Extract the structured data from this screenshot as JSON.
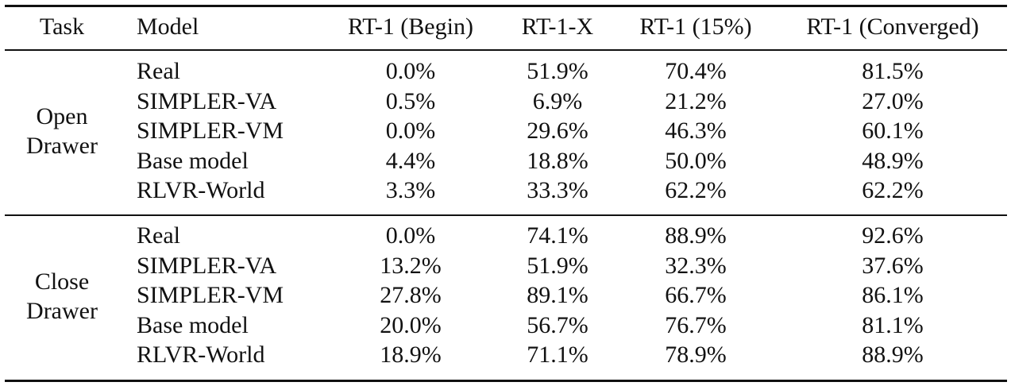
{
  "table": {
    "headers": [
      "Task",
      "Model",
      "RT-1 (Begin)",
      "RT-1-X",
      "RT-1 (15%)",
      "RT-1 (Converged)"
    ],
    "groups": [
      {
        "task_line1": "Open",
        "task_line2": "Drawer",
        "rows": [
          {
            "model": "Real",
            "values": [
              "0.0%",
              "51.9%",
              "70.4%",
              "81.5%"
            ]
          },
          {
            "model": "SIMPLER-VA",
            "values": [
              "0.5%",
              "6.9%",
              "21.2%",
              "27.0%"
            ]
          },
          {
            "model": "SIMPLER-VM",
            "values": [
              "0.0%",
              "29.6%",
              "46.3%",
              "60.1%"
            ]
          },
          {
            "model": "Base model",
            "values": [
              "4.4%",
              "18.8%",
              "50.0%",
              "48.9%"
            ]
          },
          {
            "model": "RLVR-World",
            "values": [
              "3.3%",
              "33.3%",
              "62.2%",
              "62.2%"
            ]
          }
        ]
      },
      {
        "task_line1": "Close",
        "task_line2": "Drawer",
        "rows": [
          {
            "model": "Real",
            "values": [
              "0.0%",
              "74.1%",
              "88.9%",
              "92.6%"
            ]
          },
          {
            "model": "SIMPLER-VA",
            "values": [
              "13.2%",
              "51.9%",
              "32.3%",
              "37.6%"
            ]
          },
          {
            "model": "SIMPLER-VM",
            "values": [
              "27.8%",
              "89.1%",
              "66.7%",
              "86.1%"
            ]
          },
          {
            "model": "Base model",
            "values": [
              "20.0%",
              "56.7%",
              "76.7%",
              "81.1%"
            ]
          },
          {
            "model": "RLVR-World",
            "values": [
              "18.9%",
              "71.1%",
              "78.9%",
              "88.9%"
            ]
          }
        ]
      }
    ]
  }
}
